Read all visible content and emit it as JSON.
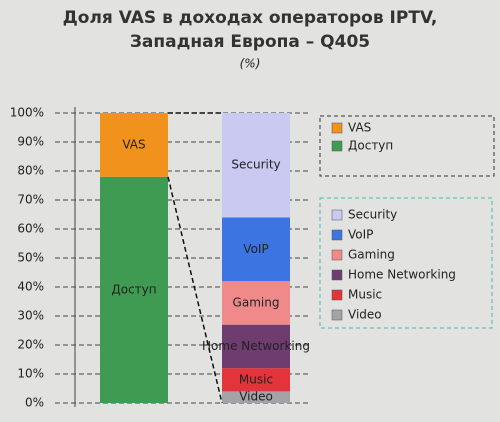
{
  "chart_data": {
    "type": "bar",
    "stacked": true,
    "title": "Доля VAS в доходах операторов IPTV,",
    "title_line2": "Западная Европа – Q405",
    "subtitle": "(%)",
    "categories": [
      null,
      null
    ],
    "series": [
      {
        "name": "Доступ",
        "color": "#3f9a52",
        "values": [
          78,
          null
        ]
      },
      {
        "name": "VAS",
        "color": "#f0921c",
        "values": [
          22,
          null
        ]
      },
      {
        "name": "Video",
        "color": "#a4a4a8",
        "values": [
          null,
          4
        ]
      },
      {
        "name": "Music",
        "color": "#e2343a",
        "values": [
          null,
          8
        ]
      },
      {
        "name": "Home Networking",
        "color": "#6e3c6e",
        "values": [
          null,
          15
        ]
      },
      {
        "name": "Gaming",
        "color": "#f08a8a",
        "values": [
          null,
          15
        ]
      },
      {
        "name": "VoIP",
        "color": "#3c74e2",
        "values": [
          null,
          22
        ]
      },
      {
        "name": "Security",
        "color": "#c9c9f2",
        "values": [
          null,
          36
        ]
      }
    ],
    "ylim": [
      0,
      100
    ],
    "yticks": [
      {
        "value": 0,
        "label": "0%"
      },
      {
        "value": 10,
        "label": "10%"
      },
      {
        "value": 20,
        "label": "20%"
      },
      {
        "value": 30,
        "label": "30%"
      },
      {
        "value": 40,
        "label": "40%"
      },
      {
        "value": 50,
        "label": "50%"
      },
      {
        "value": 60,
        "label": "60%"
      },
      {
        "value": 70,
        "label": "70%"
      },
      {
        "value": 80,
        "label": "80%"
      },
      {
        "value": 90,
        "label": "90%"
      },
      {
        "value": 100,
        "label": "100%"
      }
    ],
    "grid": true,
    "legend": "right"
  }
}
